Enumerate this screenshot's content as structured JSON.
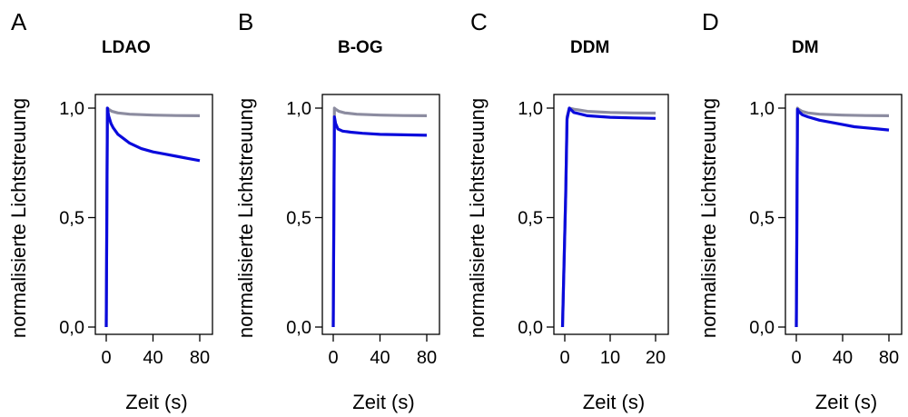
{
  "chart_data": [
    {
      "type": "line",
      "panel": "A",
      "title": "LDAO",
      "xlabel": "Zeit (s)",
      "ylabel": "normalisierte Lichtstreuung",
      "xlim": [
        0,
        80
      ],
      "ylim": [
        0,
        1
      ],
      "xticks": [
        "0",
        "40",
        "80"
      ],
      "yticks": [
        "0,0",
        "0,5",
        "1,0"
      ],
      "series": [
        {
          "color": "#0a0adc",
          "x": [
            0,
            1,
            2,
            4,
            6,
            10,
            15,
            20,
            30,
            40,
            50,
            60,
            70,
            80
          ],
          "y": [
            0,
            1.0,
            0.965,
            0.93,
            0.91,
            0.88,
            0.86,
            0.84,
            0.815,
            0.8,
            0.79,
            0.78,
            0.77,
            0.76
          ]
        },
        {
          "color": "#8c8ca0",
          "x": [
            0,
            1,
            2,
            5,
            10,
            20,
            40,
            60,
            80
          ],
          "y": [
            0,
            1.0,
            0.995,
            0.985,
            0.978,
            0.972,
            0.968,
            0.966,
            0.965
          ]
        }
      ]
    },
    {
      "type": "line",
      "panel": "B",
      "title": "B-OG",
      "xlabel": "Zeit (s)",
      "ylabel": "normalisierte Lichtstreuung",
      "xlim": [
        0,
        80
      ],
      "ylim": [
        0,
        1
      ],
      "xticks": [
        "0",
        "40",
        "80"
      ],
      "yticks": [
        "0,0",
        "0,5",
        "1,0"
      ],
      "series": [
        {
          "color": "#0a0adc",
          "x": [
            0,
            1,
            2,
            4,
            8,
            15,
            25,
            40,
            60,
            80
          ],
          "y": [
            0,
            0.96,
            0.93,
            0.905,
            0.895,
            0.89,
            0.885,
            0.88,
            0.878,
            0.876
          ]
        },
        {
          "color": "#8c8ca0",
          "x": [
            0,
            1,
            2,
            5,
            10,
            20,
            40,
            60,
            80
          ],
          "y": [
            0,
            1.0,
            0.995,
            0.985,
            0.978,
            0.972,
            0.968,
            0.966,
            0.965
          ]
        }
      ]
    },
    {
      "type": "line",
      "panel": "C",
      "title": "DDM",
      "xlabel": "Zeit (s)",
      "ylabel": "normalisierte Lichtstreuung",
      "xlim": [
        0,
        20
      ],
      "ylim": [
        0,
        1
      ],
      "xticks": [
        "0",
        "10",
        "20"
      ],
      "yticks": [
        "0,0",
        "0,5",
        "1,0"
      ],
      "series": [
        {
          "color": "#0a0adc",
          "x": [
            -0.5,
            0.2,
            0.5,
            1,
            2,
            5,
            10,
            15,
            20
          ],
          "y": [
            0,
            0.6,
            0.95,
            1.0,
            0.98,
            0.965,
            0.958,
            0.955,
            0.953
          ]
        },
        {
          "color": "#8c8ca0",
          "x": [
            -0.5,
            0.2,
            0.5,
            1,
            2,
            5,
            10,
            15,
            20
          ],
          "y": [
            0,
            0.6,
            0.96,
            1.0,
            0.995,
            0.985,
            0.98,
            0.978,
            0.977
          ]
        }
      ]
    },
    {
      "type": "line",
      "panel": "D",
      "title": "DM",
      "xlabel": "Zeit (s)",
      "ylabel": "normalisierte Lichtstreuung",
      "xlim": [
        0,
        80
      ],
      "ylim": [
        0,
        1
      ],
      "xticks": [
        "0",
        "40",
        "80"
      ],
      "yticks": [
        "0,0",
        "0,5",
        "1,0"
      ],
      "series": [
        {
          "color": "#0a0adc",
          "x": [
            0,
            1,
            2,
            5,
            10,
            20,
            30,
            40,
            50,
            60,
            70,
            80
          ],
          "y": [
            0,
            0.995,
            0.985,
            0.97,
            0.96,
            0.945,
            0.935,
            0.925,
            0.915,
            0.91,
            0.905,
            0.9
          ]
        },
        {
          "color": "#8c8ca0",
          "x": [
            0,
            1,
            2,
            5,
            10,
            20,
            40,
            60,
            80
          ],
          "y": [
            0,
            1.0,
            0.995,
            0.985,
            0.978,
            0.972,
            0.968,
            0.966,
            0.965
          ]
        }
      ]
    }
  ]
}
